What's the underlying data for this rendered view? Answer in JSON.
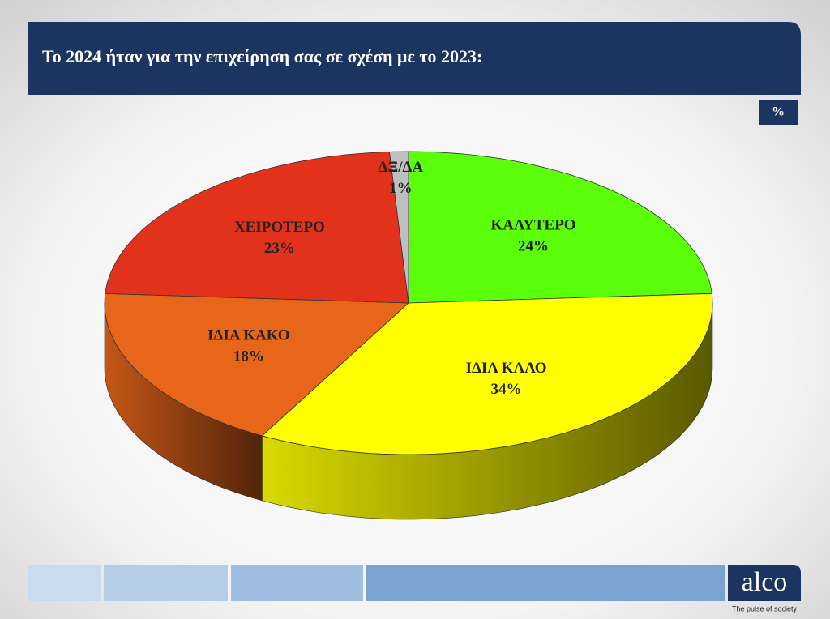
{
  "chart_data": {
    "type": "pie3d",
    "title": "Το 2024 ήταν για την επιχείρηση σας σε σχέση με το 2023:",
    "unit_badge": "%",
    "categories": [
      "ΚΑΛΥΤΕΡΟ",
      "ΙΔΙΑ ΚΑΛΟ",
      "ΙΔΙΑ ΚΑΚΟ",
      "ΧΕΙΡΟΤΕΡΟ",
      "ΔΞ/ΔΑ"
    ],
    "values": [
      24,
      34,
      18,
      23,
      1
    ],
    "value_labels": [
      "24%",
      "34%",
      "18%",
      "23%",
      "1%"
    ],
    "colors": [
      "#5cff0a",
      "#ffff00",
      "#e8661a",
      "#e3321b",
      "#bfbfbf"
    ]
  },
  "logo": {
    "name": "alco",
    "tagline": "The pulse of society"
  }
}
